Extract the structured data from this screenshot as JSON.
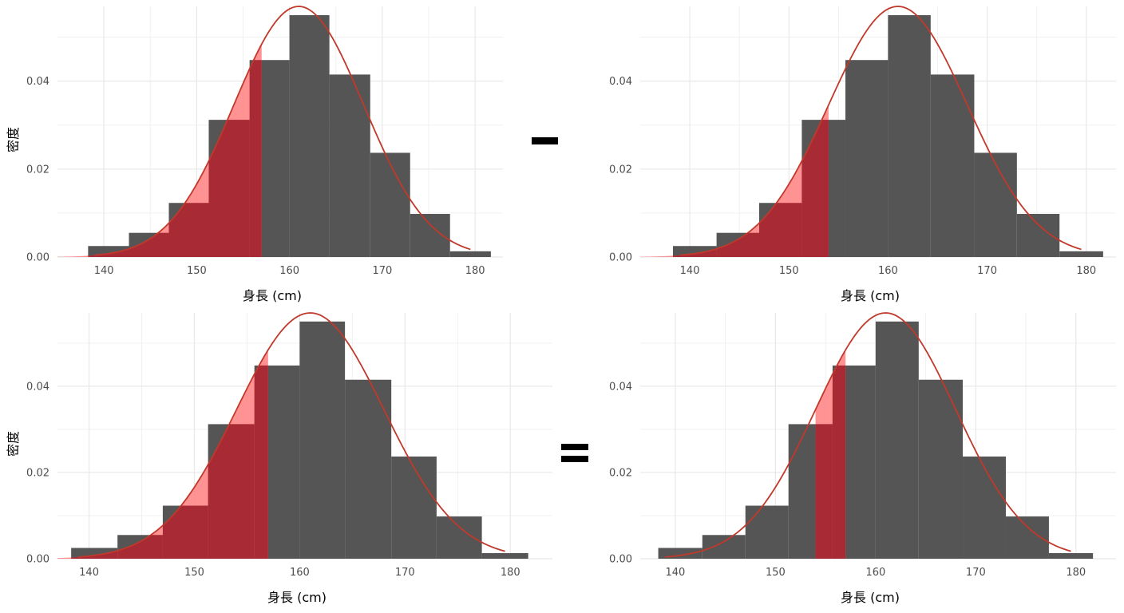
{
  "axes": {
    "xlabel": "身長 (cm)",
    "ylabel": "密度",
    "x_ticks": [
      "140",
      "150",
      "160",
      "170",
      "180"
    ],
    "y_ticks": [
      "0.00",
      "0.02",
      "0.04"
    ]
  },
  "operators": {
    "minus": "−",
    "equals": "="
  },
  "colors": {
    "bar": "#555555",
    "curve": "#c0392b",
    "shade": "#a82a35",
    "shade_light": "#ff8080",
    "grid": "#e8e8e8"
  },
  "chart_data": [
    {
      "type": "bar",
      "panel": "top-left",
      "bin_edges": [
        138.3,
        142.7,
        147.0,
        151.3,
        155.7,
        160.0,
        164.3,
        168.7,
        173.0,
        177.3,
        181.7
      ],
      "values": [
        0.0025,
        0.0055,
        0.0123,
        0.0312,
        0.0448,
        0.055,
        0.0415,
        0.0237,
        0.0098,
        0.0013
      ],
      "normal_curve": {
        "mean": 161,
        "sd": 7
      },
      "shaded_range": [
        null,
        157
      ],
      "xlim": [
        135,
        183
      ],
      "ylim": [
        0,
        0.057
      ],
      "xlabel": "身長 (cm)",
      "ylabel": "密度"
    },
    {
      "type": "bar",
      "panel": "top-right",
      "bin_edges": [
        138.3,
        142.7,
        147.0,
        151.3,
        155.7,
        160.0,
        164.3,
        168.7,
        173.0,
        177.3,
        181.7
      ],
      "values": [
        0.0025,
        0.0055,
        0.0123,
        0.0312,
        0.0448,
        0.055,
        0.0415,
        0.0237,
        0.0098,
        0.0013
      ],
      "normal_curve": {
        "mean": 161,
        "sd": 7
      },
      "shaded_range": [
        null,
        154
      ],
      "xlim": [
        135,
        183
      ],
      "ylim": [
        0,
        0.057
      ],
      "xlabel": "身長 (cm)",
      "ylabel": ""
    },
    {
      "type": "bar",
      "panel": "bottom-left",
      "bin_edges": [
        138.3,
        142.7,
        147.0,
        151.3,
        155.7,
        160.0,
        164.3,
        168.7,
        173.0,
        177.3,
        181.7
      ],
      "values": [
        0.0025,
        0.0055,
        0.0123,
        0.0312,
        0.0448,
        0.055,
        0.0415,
        0.0237,
        0.0098,
        0.0013
      ],
      "normal_curve": {
        "mean": 161,
        "sd": 7
      },
      "shaded_range": [
        null,
        157
      ],
      "xlim": [
        137,
        184
      ],
      "ylim": [
        0,
        0.057
      ],
      "xlabel": "身長 (cm)",
      "ylabel": "密度"
    },
    {
      "type": "bar",
      "panel": "bottom-right",
      "bin_edges": [
        138.3,
        142.7,
        147.0,
        151.3,
        155.7,
        160.0,
        164.3,
        168.7,
        173.0,
        177.3,
        181.7
      ],
      "values": [
        0.0025,
        0.0055,
        0.0123,
        0.0312,
        0.0448,
        0.055,
        0.0415,
        0.0237,
        0.0098,
        0.0013
      ],
      "normal_curve": {
        "mean": 161,
        "sd": 7
      },
      "shaded_range": [
        154,
        157
      ],
      "xlim": [
        136.5,
        184
      ],
      "ylim": [
        0,
        0.057
      ],
      "xlabel": "身長 (cm)",
      "ylabel": ""
    }
  ]
}
